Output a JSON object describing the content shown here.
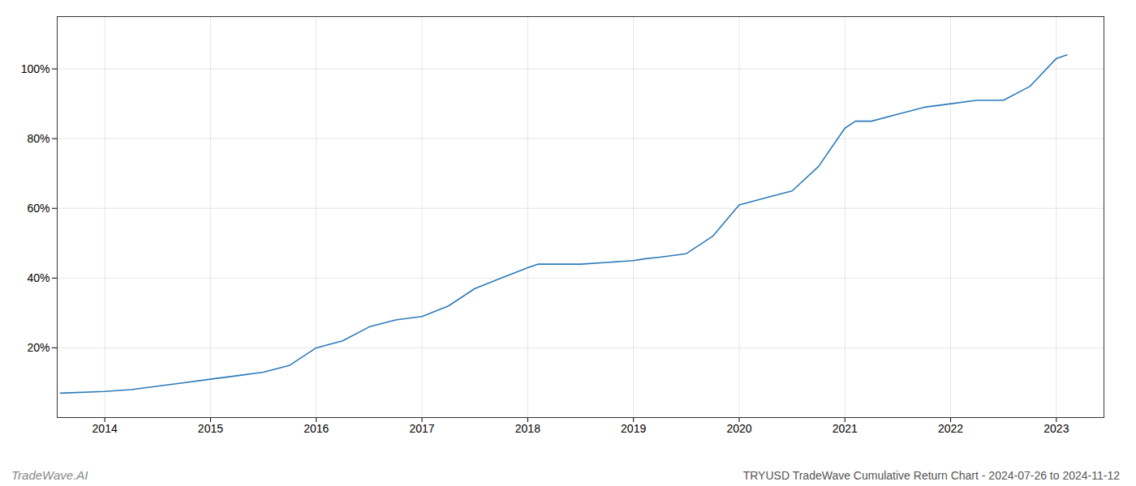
{
  "chart_data": {
    "type": "line",
    "title": "TRYUSD TradeWave Cumulative Return Chart - 2024-07-26 to 2024-11-12",
    "annotations": [
      "TradeWave.AI"
    ],
    "x": [
      2013.58,
      2014.0,
      2014.25,
      2014.5,
      2014.75,
      2015.0,
      2015.25,
      2015.5,
      2015.75,
      2016.0,
      2016.25,
      2016.5,
      2016.75,
      2017.0,
      2017.25,
      2017.5,
      2017.75,
      2018.0,
      2018.1,
      2018.25,
      2018.5,
      2018.75,
      2019.0,
      2019.1,
      2019.25,
      2019.5,
      2019.75,
      2020.0,
      2020.25,
      2020.5,
      2020.75,
      2021.0,
      2021.1,
      2021.25,
      2021.5,
      2021.75,
      2022.0,
      2022.25,
      2022.5,
      2022.75,
      2023.0,
      2023.1
    ],
    "values": [
      7,
      7.5,
      8,
      9,
      10,
      11,
      12,
      13,
      15,
      20,
      22,
      26,
      28,
      29,
      32,
      37,
      40,
      43,
      44,
      44,
      44,
      44.5,
      45,
      45.5,
      46,
      47,
      52,
      61,
      63,
      65,
      72,
      83,
      85,
      85,
      87,
      89,
      90,
      91,
      91,
      95,
      103,
      104
    ],
    "color": "#2b7bba",
    "xlim": [
      2013.55,
      2023.45
    ],
    "xticks": [
      2014,
      2015,
      2016,
      2017,
      2018,
      2019,
      2020,
      2021,
      2022,
      2023
    ],
    "ylim": [
      0,
      115
    ],
    "yticks": [
      {
        "value": 20,
        "label": "20%"
      },
      {
        "value": 40,
        "label": "40%"
      },
      {
        "value": 60,
        "label": "60%"
      },
      {
        "value": 80,
        "label": "80%"
      },
      {
        "value": 100,
        "label": "100%"
      }
    ],
    "grid": true
  }
}
